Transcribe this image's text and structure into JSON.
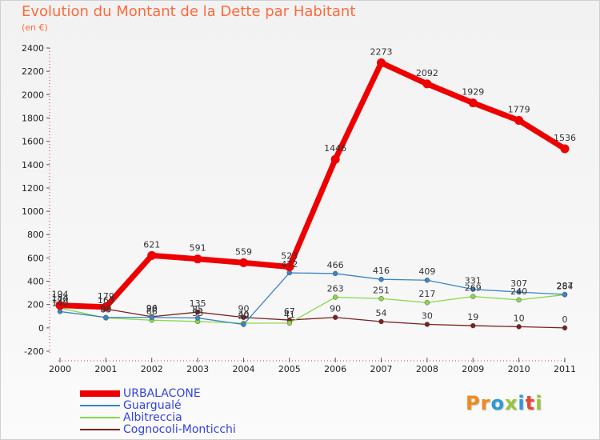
{
  "title": "Evolution du Montant de la Dette par Habitant",
  "subtitle": "(en €)",
  "logo_text": "Proxiti",
  "colors": {
    "title": "#ff6a3c",
    "legend_text": "#3344dd"
  },
  "chart_data": {
    "type": "line",
    "title": "Evolution du Montant de la Dette par Habitant",
    "ylabel": "(en €)",
    "xlabel": "",
    "x": [
      "2000",
      "2001",
      "2002",
      "2003",
      "2004",
      "2005",
      "2006",
      "2007",
      "2008",
      "2009",
      "2010",
      "2011"
    ],
    "ylim": [
      -200,
      2400
    ],
    "yticks": [
      -200,
      0,
      200,
      400,
      600,
      800,
      1000,
      1200,
      1400,
      1600,
      1800,
      2000,
      2200,
      2400
    ],
    "grid": false,
    "legend_position": "bottom-left",
    "series": [
      {
        "name": "URBALACONE",
        "color": "#ee0000",
        "values": [
          194,
          179,
          621,
          591,
          559,
          523,
          1446,
          2273,
          2092,
          1929,
          1779,
          1536
        ],
        "labels": [
          "194",
          "179",
          "621",
          "591",
          "559",
          "523",
          "1446",
          "2273",
          "2092",
          "1929",
          "1779",
          "1536"
        ]
      },
      {
        "name": "Guargualé",
        "color": "#3a84c8",
        "values": [
          140,
          90,
          90,
          85,
          29,
          472,
          466,
          416,
          409,
          331,
          307,
          287
        ],
        "labels": [
          "140",
          "90",
          "90",
          "85",
          "29",
          "472",
          "466",
          "416",
          "409",
          "331",
          "307",
          "287"
        ]
      },
      {
        "name": "Albitreccia",
        "color": "#88d84a",
        "values": [
          170,
          85,
          66,
          55,
          40,
          41,
          263,
          251,
          217,
          269,
          240,
          284
        ],
        "labels": [
          "170",
          "85",
          "66",
          "55",
          "40",
          "41",
          "263",
          "251",
          "217",
          "269",
          "240",
          "284"
        ]
      },
      {
        "name": "Cognocoli-Monticchi",
        "color": "#7a2020",
        "values": [
          184,
          163,
          96,
          135,
          90,
          67,
          90,
          54,
          30,
          19,
          10,
          0
        ],
        "labels": [
          "184",
          "163",
          "96",
          "135",
          "90",
          "67",
          "90",
          "54",
          "30",
          "19",
          "10",
          "0"
        ]
      }
    ]
  }
}
